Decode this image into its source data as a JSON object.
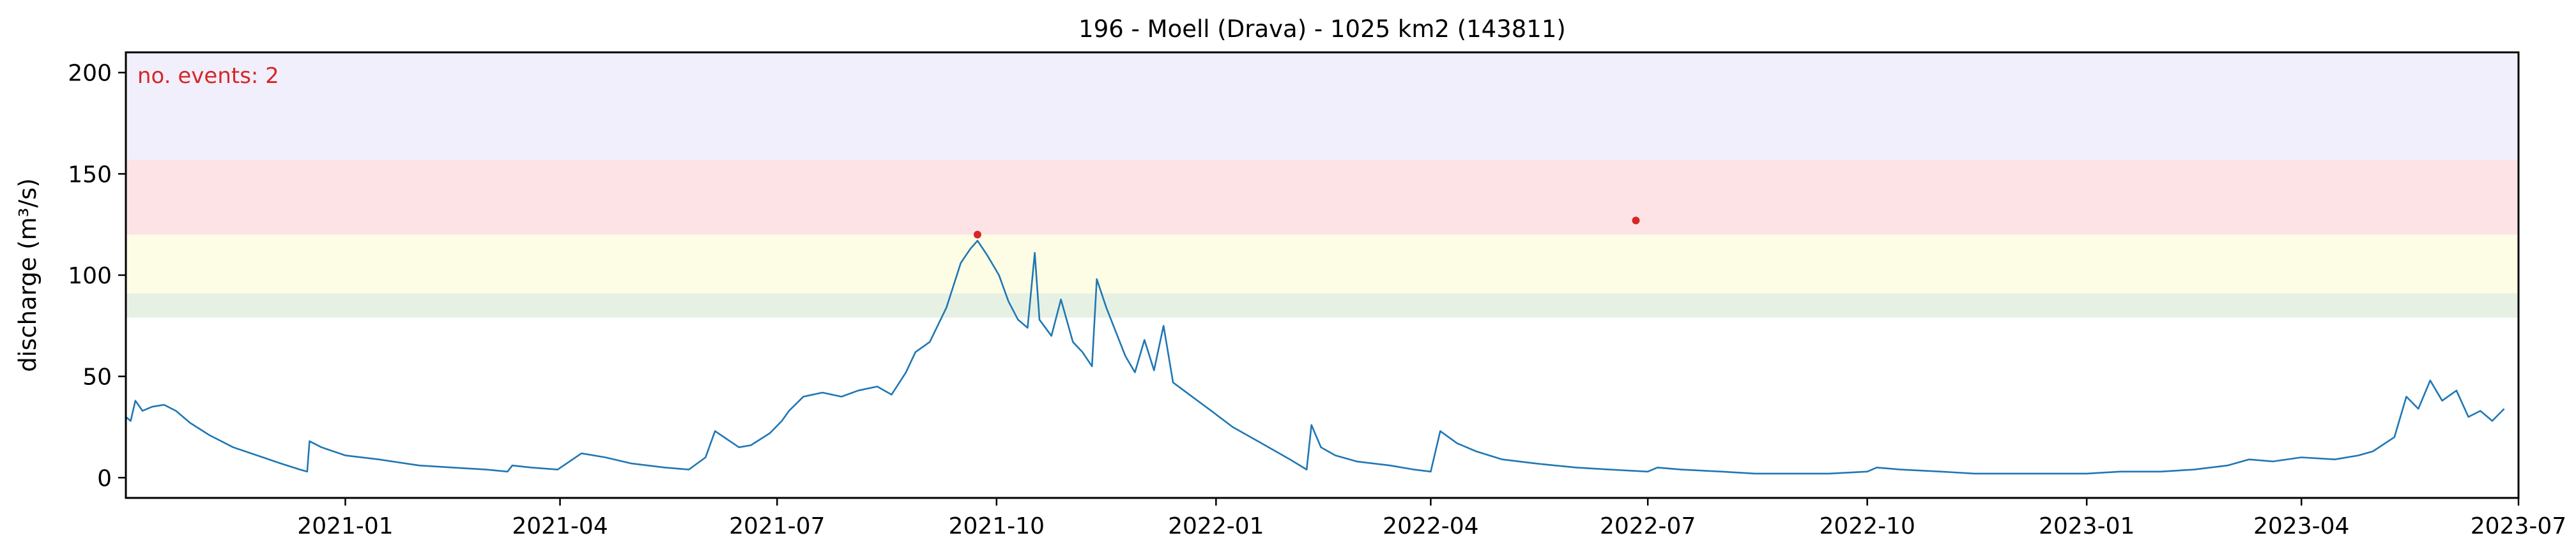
{
  "chart_data": {
    "type": "line",
    "title": "196 - Moell (Drava) - 1025 km2 (143811)",
    "xlabel": "",
    "ylabel": "discharge (m³/s)",
    "xlim": [
      "2020-10-01",
      "2023-07-01"
    ],
    "ylim": [
      -10,
      210
    ],
    "grid": false,
    "x_ticks": [
      "2021-01",
      "2021-04",
      "2021-07",
      "2021-10",
      "2022-01",
      "2022-04",
      "2022-07",
      "2022-10",
      "2023-01",
      "2023-04",
      "2023-07"
    ],
    "y_ticks": [
      0,
      50,
      100,
      150,
      200
    ],
    "bands": [
      {
        "from": 79,
        "to": 91,
        "color": "#e6f1e4"
      },
      {
        "from": 91,
        "to": 120,
        "color": "#fdfde5"
      },
      {
        "from": 120,
        "to": 157,
        "color": "#fde3e5"
      },
      {
        "from": 157,
        "to": 210,
        "color": "#f1effb"
      }
    ],
    "series": [
      {
        "color": "#1f77b4",
        "points": [
          [
            "2020-10-01",
            30
          ],
          [
            "2020-10-03",
            28
          ],
          [
            "2020-10-05",
            38
          ],
          [
            "2020-10-08",
            33
          ],
          [
            "2020-10-12",
            35
          ],
          [
            "2020-10-17",
            36
          ],
          [
            "2020-10-22",
            33
          ],
          [
            "2020-10-28",
            27
          ],
          [
            "2020-11-05",
            21
          ],
          [
            "2020-11-15",
            15
          ],
          [
            "2020-11-25",
            11
          ],
          [
            "2020-12-05",
            7
          ],
          [
            "2020-12-13",
            4
          ],
          [
            "2020-12-16",
            3
          ],
          [
            "2020-12-17",
            18
          ],
          [
            "2020-12-22",
            15
          ],
          [
            "2021-01-01",
            11
          ],
          [
            "2021-01-15",
            9
          ],
          [
            "2021-02-01",
            6
          ],
          [
            "2021-02-15",
            5
          ],
          [
            "2021-03-01",
            4
          ],
          [
            "2021-03-10",
            3
          ],
          [
            "2021-03-12",
            6
          ],
          [
            "2021-03-20",
            5
          ],
          [
            "2021-03-31",
            4
          ],
          [
            "2021-04-10",
            12
          ],
          [
            "2021-04-20",
            10
          ],
          [
            "2021-05-01",
            7
          ],
          [
            "2021-05-15",
            5
          ],
          [
            "2021-05-25",
            4
          ],
          [
            "2021-06-01",
            10
          ],
          [
            "2021-06-05",
            23
          ],
          [
            "2021-06-10",
            19
          ],
          [
            "2021-06-15",
            15
          ],
          [
            "2021-06-20",
            16
          ],
          [
            "2021-06-28",
            22
          ],
          [
            "2021-07-03",
            28
          ],
          [
            "2021-07-06",
            33
          ],
          [
            "2021-07-12",
            40
          ],
          [
            "2021-07-20",
            42
          ],
          [
            "2021-07-28",
            40
          ],
          [
            "2021-08-04",
            43
          ],
          [
            "2021-08-12",
            45
          ],
          [
            "2021-08-18",
            41
          ],
          [
            "2021-08-24",
            52
          ],
          [
            "2021-08-28",
            62
          ],
          [
            "2021-09-03",
            67
          ],
          [
            "2021-09-10",
            84
          ],
          [
            "2021-09-16",
            106
          ],
          [
            "2021-09-20",
            113
          ],
          [
            "2021-09-23",
            117
          ],
          [
            "2021-09-27",
            110
          ],
          [
            "2021-10-02",
            100
          ],
          [
            "2021-10-06",
            87
          ],
          [
            "2021-10-10",
            78
          ],
          [
            "2021-10-14",
            74
          ],
          [
            "2021-10-17",
            111
          ],
          [
            "2021-10-19",
            78
          ],
          [
            "2021-10-24",
            70
          ],
          [
            "2021-10-28",
            88
          ],
          [
            "2021-11-02",
            67
          ],
          [
            "2021-11-06",
            62
          ],
          [
            "2021-11-10",
            55
          ],
          [
            "2021-11-12",
            98
          ],
          [
            "2021-11-16",
            84
          ],
          [
            "2021-11-20",
            72
          ],
          [
            "2021-11-24",
            60
          ],
          [
            "2021-11-28",
            52
          ],
          [
            "2021-12-02",
            68
          ],
          [
            "2021-12-06",
            53
          ],
          [
            "2021-12-10",
            75
          ],
          [
            "2021-12-14",
            47
          ],
          [
            "2021-12-22",
            40
          ],
          [
            "2021-12-30",
            33
          ],
          [
            "2022-01-08",
            25
          ],
          [
            "2022-01-20",
            17
          ],
          [
            "2022-02-01",
            9
          ],
          [
            "2022-02-08",
            4
          ],
          [
            "2022-02-10",
            26
          ],
          [
            "2022-02-14",
            15
          ],
          [
            "2022-02-20",
            11
          ],
          [
            "2022-03-01",
            8
          ],
          [
            "2022-03-15",
            6
          ],
          [
            "2022-03-25",
            4
          ],
          [
            "2022-04-01",
            3
          ],
          [
            "2022-04-05",
            23
          ],
          [
            "2022-04-12",
            17
          ],
          [
            "2022-04-20",
            13
          ],
          [
            "2022-05-01",
            9
          ],
          [
            "2022-05-15",
            7
          ],
          [
            "2022-06-01",
            5
          ],
          [
            "2022-06-15",
            4
          ],
          [
            "2022-07-01",
            3
          ],
          [
            "2022-07-05",
            5
          ],
          [
            "2022-07-15",
            4
          ],
          [
            "2022-08-01",
            3
          ],
          [
            "2022-08-15",
            2
          ],
          [
            "2022-09-01",
            2
          ],
          [
            "2022-09-15",
            2
          ],
          [
            "2022-10-01",
            3
          ],
          [
            "2022-10-05",
            5
          ],
          [
            "2022-10-15",
            4
          ],
          [
            "2022-11-01",
            3
          ],
          [
            "2022-11-15",
            2
          ],
          [
            "2022-12-01",
            2
          ],
          [
            "2022-12-15",
            2
          ],
          [
            "2023-01-01",
            2
          ],
          [
            "2023-01-15",
            3
          ],
          [
            "2023-02-01",
            3
          ],
          [
            "2023-02-15",
            4
          ],
          [
            "2023-03-01",
            6
          ],
          [
            "2023-03-10",
            9
          ],
          [
            "2023-03-20",
            8
          ],
          [
            "2023-04-01",
            10
          ],
          [
            "2023-04-15",
            9
          ],
          [
            "2023-04-25",
            11
          ],
          [
            "2023-05-01",
            13
          ],
          [
            "2023-05-10",
            20
          ],
          [
            "2023-05-15",
            40
          ],
          [
            "2023-05-20",
            34
          ],
          [
            "2023-05-25",
            48
          ],
          [
            "2023-05-30",
            38
          ],
          [
            "2023-06-05",
            43
          ],
          [
            "2023-06-10",
            30
          ],
          [
            "2023-06-15",
            33
          ],
          [
            "2023-06-20",
            28
          ],
          [
            "2023-06-25",
            34
          ]
        ]
      }
    ],
    "events": [
      {
        "date": "2021-09-23",
        "value": 120,
        "color": "#d62728"
      },
      {
        "date": "2022-06-26",
        "value": 127,
        "color": "#d62728"
      }
    ],
    "annotation": {
      "text": "no. events: 2",
      "color": "#d62728"
    }
  }
}
